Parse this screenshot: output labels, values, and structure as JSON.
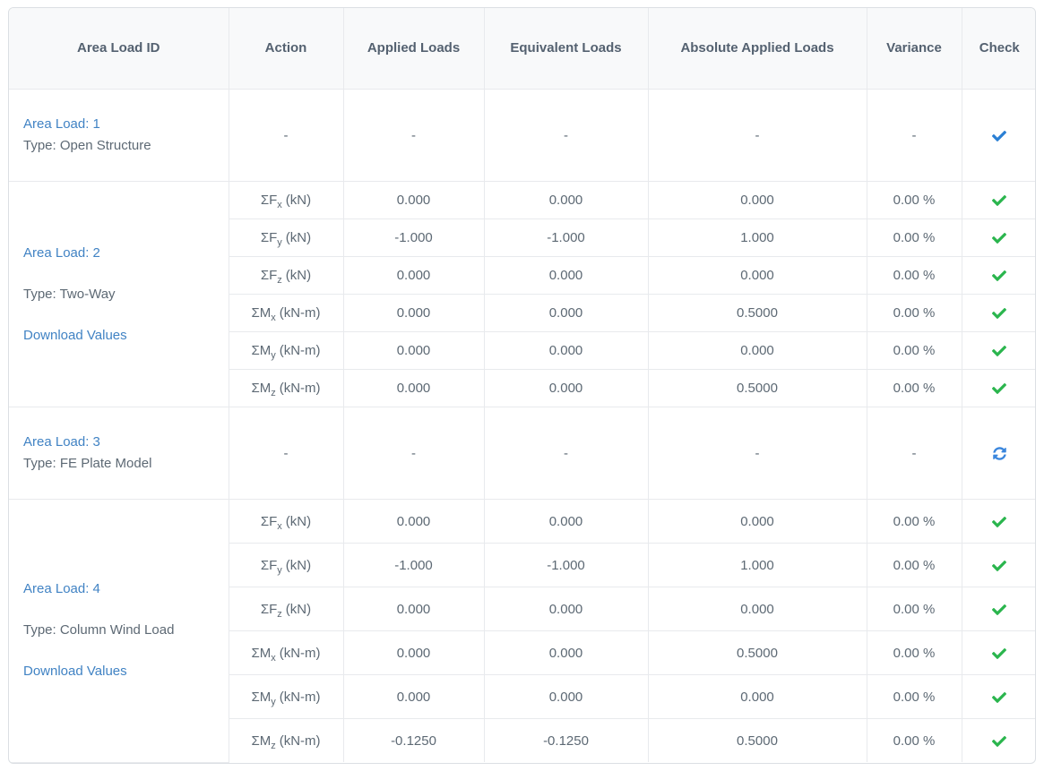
{
  "colors": {
    "link": "#4183c4",
    "header_text": "#546170",
    "body_text": "#5d6974",
    "header_bg": "#f8f9fa",
    "border_inner": "#e8eaed",
    "border_outer": "#dbdfe3",
    "check_green": "#2ab54d",
    "check_blue": "#2a7fd4",
    "refresh_blue": "#3a86dd"
  },
  "headers": [
    "Area Load ID",
    "Action",
    "Applied Loads",
    "Equivalent Loads",
    "Absolute Applied Loads",
    "Variance",
    "Check"
  ],
  "groups": [
    {
      "title": "Area Load: 1",
      "type": "Type: Open Structure",
      "action": "-",
      "applied": "-",
      "equivalent": "-",
      "absolute": "-",
      "variance": "-",
      "check": "check-blue"
    },
    {
      "title": "Area Load: 2",
      "type": "Type: Two-Way",
      "download": "Download Values",
      "rows": [
        {
          "pre": "ΣF",
          "sub": "x",
          "unit": "(kN)",
          "applied": "0.000",
          "equivalent": "0.000",
          "absolute": "0.000",
          "variance": "0.00 %",
          "check": "check-green"
        },
        {
          "pre": "ΣF",
          "sub": "y",
          "unit": "(kN)",
          "applied": "-1.000",
          "equivalent": "-1.000",
          "absolute": "1.000",
          "variance": "0.00 %",
          "check": "check-green"
        },
        {
          "pre": "ΣF",
          "sub": "z",
          "unit": "(kN)",
          "applied": "0.000",
          "equivalent": "0.000",
          "absolute": "0.000",
          "variance": "0.00 %",
          "check": "check-green"
        },
        {
          "pre": "ΣM",
          "sub": "x",
          "unit": "(kN-m)",
          "applied": "0.000",
          "equivalent": "0.000",
          "absolute": "0.5000",
          "variance": "0.00 %",
          "check": "check-green"
        },
        {
          "pre": "ΣM",
          "sub": "y",
          "unit": "(kN-m)",
          "applied": "0.000",
          "equivalent": "0.000",
          "absolute": "0.000",
          "variance": "0.00 %",
          "check": "check-green"
        },
        {
          "pre": "ΣM",
          "sub": "z",
          "unit": "(kN-m)",
          "applied": "0.000",
          "equivalent": "0.000",
          "absolute": "0.5000",
          "variance": "0.00 %",
          "check": "check-green"
        }
      ]
    },
    {
      "title": "Area Load: 3",
      "type": "Type: FE Plate Model",
      "action": "-",
      "applied": "-",
      "equivalent": "-",
      "absolute": "-",
      "variance": "-",
      "check": "refresh-blue"
    },
    {
      "title": "Area Load: 4",
      "type": "Type: Column Wind Load",
      "download": "Download Values",
      "rows": [
        {
          "pre": "ΣF",
          "sub": "x",
          "unit": "(kN)",
          "applied": "0.000",
          "equivalent": "0.000",
          "absolute": "0.000",
          "variance": "0.00 %",
          "check": "check-green"
        },
        {
          "pre": "ΣF",
          "sub": "y",
          "unit": "(kN)",
          "applied": "-1.000",
          "equivalent": "-1.000",
          "absolute": "1.000",
          "variance": "0.00 %",
          "check": "check-green"
        },
        {
          "pre": "ΣF",
          "sub": "z",
          "unit": "(kN)",
          "applied": "0.000",
          "equivalent": "0.000",
          "absolute": "0.000",
          "variance": "0.00 %",
          "check": "check-green"
        },
        {
          "pre": "ΣM",
          "sub": "x",
          "unit": "(kN-m)",
          "applied": "0.000",
          "equivalent": "0.000",
          "absolute": "0.5000",
          "variance": "0.00 %",
          "check": "check-green"
        },
        {
          "pre": "ΣM",
          "sub": "y",
          "unit": "(kN-m)",
          "applied": "0.000",
          "equivalent": "0.000",
          "absolute": "0.000",
          "variance": "0.00 %",
          "check": "check-green"
        },
        {
          "pre": "ΣM",
          "sub": "z",
          "unit": "(kN-m)",
          "applied": "-0.1250",
          "equivalent": "-0.1250",
          "absolute": "0.5000",
          "variance": "0.00 %",
          "check": "check-green"
        }
      ]
    }
  ]
}
